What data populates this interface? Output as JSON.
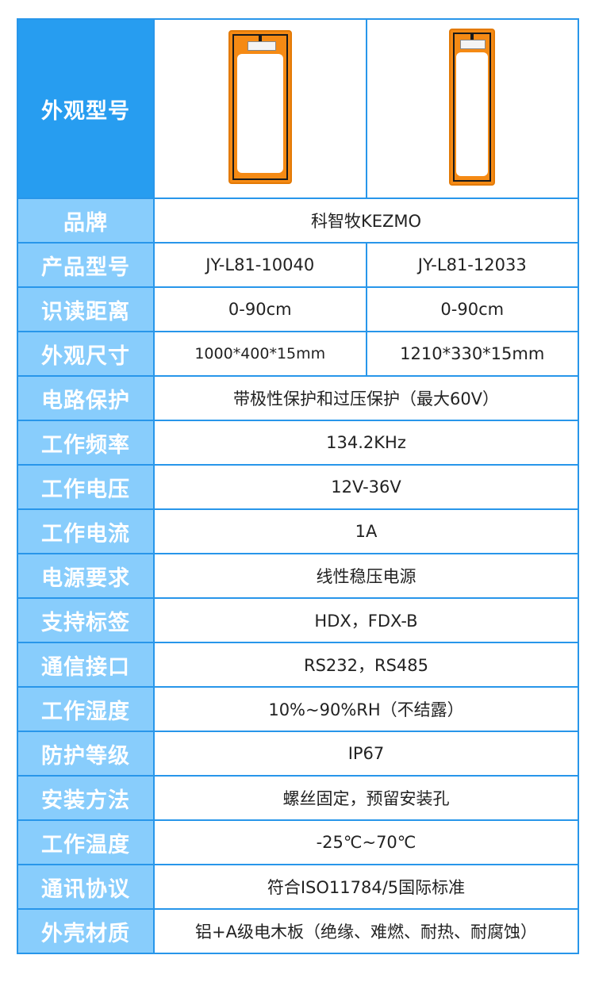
{
  "colors": {
    "header_dark": "#279df0",
    "header_light": "#88cdfc",
    "border": "#2896ea",
    "antenna": "#f58a14"
  },
  "appearance": {
    "label": "外观型号",
    "images": [
      "antenna-1000x400",
      "antenna-1210x330"
    ]
  },
  "rows": [
    {
      "label": "品牌",
      "values": [
        "科智牧KEZMO"
      ]
    },
    {
      "label": "产品型号",
      "values": [
        "JY-L81-10040",
        "JY-L81-12033"
      ]
    },
    {
      "label": "识读距离",
      "values": [
        "0-90cm",
        "0-90cm"
      ]
    },
    {
      "label": "外观尺寸",
      "values": [
        "1000*400*15mm",
        "1210*330*15mm"
      ]
    },
    {
      "label": "电路保护",
      "values": [
        "带极性保护和过压保护（最大60V）"
      ]
    },
    {
      "label": "工作频率",
      "values": [
        "134.2KHz"
      ]
    },
    {
      "label": "工作电压",
      "values": [
        "12V-36V"
      ]
    },
    {
      "label": "工作电流",
      "values": [
        "1A"
      ]
    },
    {
      "label": "电源要求",
      "values": [
        "线性稳压电源"
      ]
    },
    {
      "label": "支持标签",
      "values": [
        "HDX，FDX-B"
      ]
    },
    {
      "label": "通信接口",
      "values": [
        "RS232，RS485"
      ]
    },
    {
      "label": "工作湿度",
      "values": [
        "10%~90%RH（不结露）"
      ]
    },
    {
      "label": "防护等级",
      "values": [
        "IP67"
      ]
    },
    {
      "label": "安装方法",
      "values": [
        "螺丝固定，预留安装孔"
      ]
    },
    {
      "label": "工作温度",
      "values": [
        "-25℃~70℃"
      ]
    },
    {
      "label": "通讯协议",
      "values": [
        "符合ISO11784/5国际标准"
      ]
    },
    {
      "label": "外壳材质",
      "values": [
        "铝+A级电木板（绝缘、难燃、耐热、耐腐蚀）"
      ]
    }
  ]
}
